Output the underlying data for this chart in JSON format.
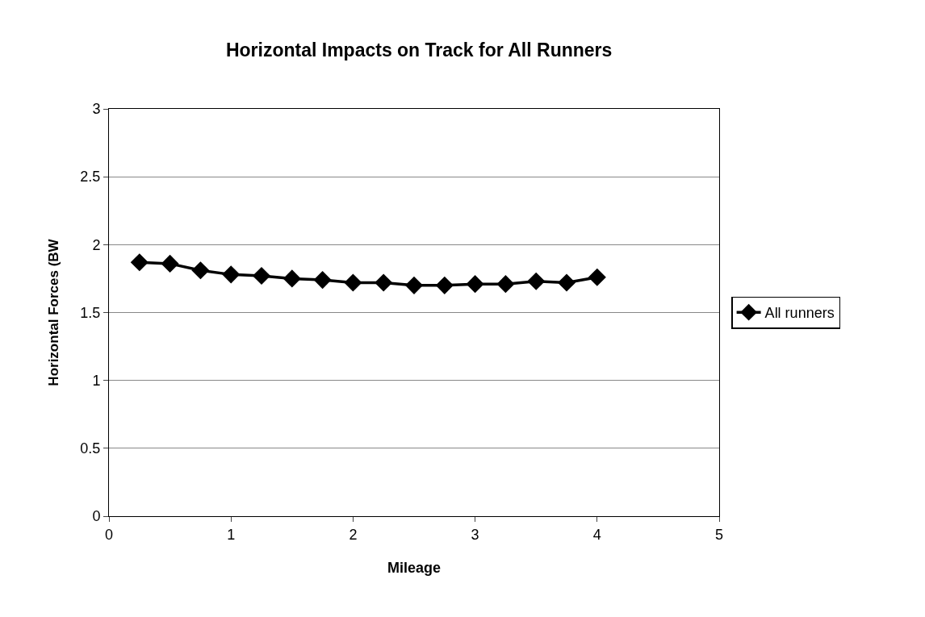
{
  "chart_data": {
    "type": "line",
    "title": "Horizontal Impacts on Track for All Runners",
    "xlabel": "Mileage",
    "ylabel": "Horizontal Forces (BW",
    "x": [
      0.25,
      0.5,
      0.75,
      1,
      1.25,
      1.5,
      1.75,
      2,
      2.25,
      2.5,
      2.75,
      3,
      3.25,
      3.5,
      3.75,
      4
    ],
    "series": [
      {
        "name": "All runners",
        "color": "#000000",
        "values": [
          1.87,
          1.86,
          1.81,
          1.78,
          1.77,
          1.75,
          1.74,
          1.72,
          1.72,
          1.7,
          1.7,
          1.71,
          1.71,
          1.73,
          1.72,
          1.76
        ]
      }
    ],
    "xlim": [
      0,
      5
    ],
    "xticks": [
      0,
      1,
      2,
      3,
      4,
      5
    ],
    "ylim": [
      0,
      3
    ],
    "yticks": [
      0,
      0.5,
      1,
      1.5,
      2,
      2.5,
      3
    ],
    "grid": "y",
    "legend": "right",
    "marker": "diamond",
    "line_style": "solid"
  }
}
